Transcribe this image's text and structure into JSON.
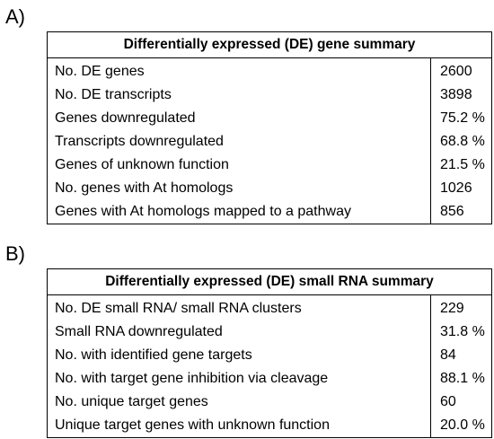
{
  "panel_a": {
    "label": "A)",
    "title": "Differentially expressed (DE) gene summary",
    "rows": [
      {
        "label": "No. DE genes",
        "value": "2600"
      },
      {
        "label": "No. DE transcripts",
        "value": "3898"
      },
      {
        "label": "Genes downregulated",
        "value": "75.2 %"
      },
      {
        "label": "Transcripts downregulated",
        "value": "68.8 %"
      },
      {
        "label": "Genes of unknown function",
        "value": "21.5 %"
      },
      {
        "label": "No. genes with At homologs",
        "value": "1026"
      },
      {
        "label": "Genes with At homologs mapped to a pathway",
        "value": "856"
      }
    ]
  },
  "panel_b": {
    "label": "B)",
    "title": "Differentially expressed (DE) small RNA summary",
    "rows": [
      {
        "label": "No. DE small RNA/ small RNA clusters",
        "value": "229"
      },
      {
        "label": "Small RNA downregulated",
        "value": "31.8 %"
      },
      {
        "label": "No. with identified gene targets",
        "value": "84"
      },
      {
        "label": "No. with target gene inhibition via cleavage",
        "value": "88.1 %"
      },
      {
        "label": "No. unique target genes",
        "value": "60"
      },
      {
        "label": "Unique target genes with unknown function",
        "value": "20.0 %"
      }
    ]
  }
}
